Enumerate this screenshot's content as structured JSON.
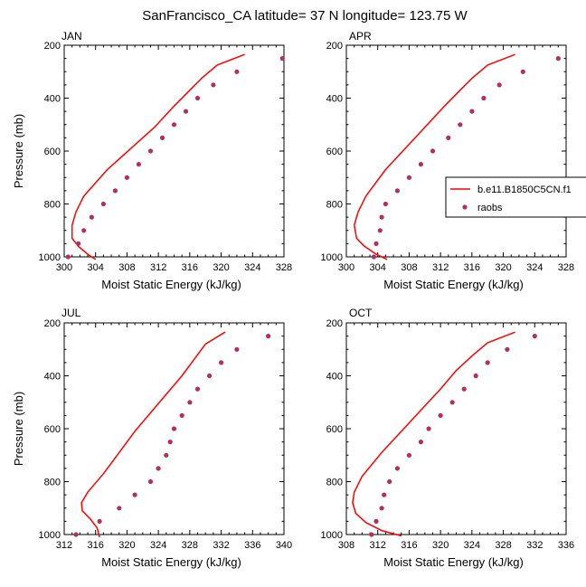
{
  "title": "SanFrancisco_CA  latitude= 37 N longitude= 123.75 W",
  "colors": {
    "model_line": "#ff0000",
    "raobs_marker": "#b03060"
  },
  "legend": {
    "model_label": "b.e11.B1850C5CN.f1",
    "obs_label": "raobs"
  },
  "chart_data": [
    {
      "type": "line",
      "panel": "JAN",
      "xlabel": "Moist Static Energy (kJ/kg)",
      "ylabel": "Pressure (mb)",
      "xlim": [
        300,
        328
      ],
      "ylim": [
        200,
        1000
      ],
      "xticks": [
        300,
        304,
        308,
        312,
        316,
        320,
        324,
        328
      ],
      "yticks": [
        200,
        400,
        600,
        800,
        1000
      ],
      "y_inverted": true,
      "series": [
        {
          "name": "b.e11.B1850C5CN.f1",
          "style": "line",
          "x": [
            323.0,
            319.5,
            317.5,
            316.0,
            314.0,
            311.5,
            308.5,
            305.5,
            302.5,
            301.5,
            301.0,
            301.0,
            301.8,
            303.0,
            304.0
          ],
          "y": [
            235,
            275,
            325,
            370,
            430,
            510,
            590,
            670,
            770,
            830,
            880,
            930,
            960,
            990,
            1010
          ]
        },
        {
          "name": "raobs",
          "style": "marker",
          "x": [
            327.8,
            322.0,
            319.0,
            317.0,
            315.5,
            314.0,
            312.5,
            311.0,
            309.5,
            308.0,
            306.5,
            305.0,
            303.5,
            302.5,
            301.8,
            300.5
          ],
          "y": [
            250,
            300,
            350,
            400,
            450,
            500,
            550,
            600,
            650,
            700,
            750,
            800,
            850,
            900,
            950,
            1000
          ]
        }
      ]
    },
    {
      "type": "line",
      "panel": "APR",
      "xlabel": "Moist Static Energy (kJ/kg)",
      "ylabel": "",
      "xlim": [
        300,
        328
      ],
      "ylim": [
        200,
        1000
      ],
      "xticks": [
        300,
        304,
        308,
        312,
        316,
        320,
        324,
        328
      ],
      "yticks": [
        200,
        400,
        600,
        800,
        1000
      ],
      "y_inverted": true,
      "series": [
        {
          "name": "b.e11.B1850C5CN.f1",
          "style": "line",
          "x": [
            321.5,
            318.0,
            316.0,
            314.5,
            312.5,
            310.0,
            307.5,
            305.0,
            302.5,
            301.5,
            301.0,
            301.3,
            302.3,
            303.8,
            305.2
          ],
          "y": [
            235,
            275,
            325,
            370,
            430,
            510,
            590,
            670,
            770,
            830,
            880,
            930,
            960,
            990,
            1010
          ]
        },
        {
          "name": "raobs",
          "style": "marker",
          "x": [
            327.0,
            322.5,
            319.5,
            317.5,
            316.0,
            314.5,
            313.0,
            311.0,
            309.5,
            308.0,
            306.5,
            305.0,
            304.5,
            304.3,
            303.8,
            303.5
          ],
          "y": [
            250,
            300,
            350,
            400,
            450,
            500,
            550,
            600,
            650,
            700,
            750,
            800,
            850,
            900,
            950,
            1000
          ]
        }
      ]
    },
    {
      "type": "line",
      "panel": "JUL",
      "xlabel": "Moist Static Energy (kJ/kg)",
      "ylabel": "Pressure (mb)",
      "xlim": [
        312,
        340
      ],
      "ylim": [
        200,
        1000
      ],
      "xticks": [
        312,
        316,
        320,
        324,
        328,
        332,
        336,
        340
      ],
      "yticks": [
        200,
        400,
        600,
        800,
        1000
      ],
      "y_inverted": true,
      "series": [
        {
          "name": "b.e11.B1850C5CN.f1",
          "style": "line",
          "x": [
            332.5,
            330.0,
            328.5,
            327.0,
            325.0,
            323.0,
            321.0,
            319.0,
            317.0,
            315.0,
            314.2,
            314.3,
            315.3,
            316.2,
            316.5
          ],
          "y": [
            235,
            280,
            340,
            400,
            470,
            540,
            610,
            690,
            770,
            840,
            880,
            910,
            940,
            975,
            1010
          ]
        },
        {
          "name": "raobs",
          "style": "marker",
          "x": [
            338.0,
            334.0,
            332.0,
            330.5,
            329.0,
            328.0,
            327.0,
            326.0,
            325.5,
            325.0,
            324.0,
            323.0,
            321.0,
            319.0,
            316.5,
            313.5
          ],
          "y": [
            250,
            300,
            350,
            400,
            450,
            500,
            550,
            600,
            650,
            700,
            750,
            800,
            850,
            900,
            950,
            1000
          ]
        }
      ]
    },
    {
      "type": "line",
      "panel": "OCT",
      "xlabel": "Moist Static Energy (kJ/kg)",
      "ylabel": "",
      "xlim": [
        308,
        336
      ],
      "ylim": [
        200,
        1000
      ],
      "xticks": [
        308,
        312,
        316,
        320,
        324,
        328,
        332,
        336
      ],
      "yticks": [
        200,
        400,
        600,
        800,
        1000
      ],
      "y_inverted": true,
      "series": [
        {
          "name": "b.e11.B1850C5CN.f1",
          "style": "line",
          "x": [
            329.5,
            326.0,
            324.0,
            322.0,
            320.0,
            317.5,
            315.0,
            312.5,
            310.0,
            309.0,
            308.8,
            309.2,
            310.5,
            312.5,
            315.0
          ],
          "y": [
            235,
            275,
            325,
            380,
            450,
            530,
            610,
            690,
            780,
            840,
            880,
            920,
            955,
            985,
            1005
          ]
        },
        {
          "name": "raobs",
          "style": "marker",
          "x": [
            332.0,
            328.5,
            326.0,
            324.5,
            323.0,
            321.5,
            320.0,
            318.5,
            317.5,
            316.0,
            314.5,
            313.5,
            312.8,
            312.5,
            311.8,
            311.2
          ],
          "y": [
            250,
            300,
            350,
            400,
            450,
            500,
            550,
            600,
            650,
            700,
            750,
            800,
            850,
            900,
            950,
            1000
          ]
        }
      ]
    }
  ]
}
